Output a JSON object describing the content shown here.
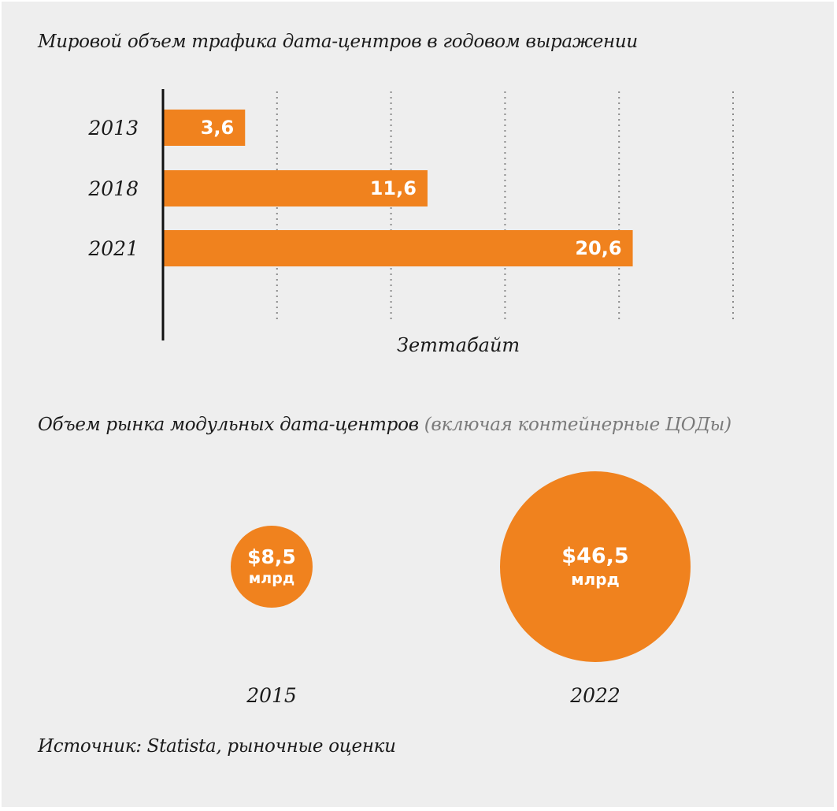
{
  "colors": {
    "background": "#eeeeee",
    "bar": "#f0821e",
    "text": "#1a1a1a",
    "subtitle": "#7a7a7a"
  },
  "chart_data": [
    {
      "type": "bar",
      "orientation": "horizontal",
      "title": "Мировой объем трафика дата-центров в годовом выражении",
      "xlabel": "Зеттабайт",
      "categories": [
        "2013",
        "2018",
        "2021"
      ],
      "values": [
        3.6,
        11.6,
        20.6
      ],
      "value_labels": [
        "3,6",
        "11,6",
        "20,6"
      ],
      "xlim": [
        0,
        25
      ],
      "grid": "vertical dotted",
      "legend": "none"
    },
    {
      "type": "bubble",
      "title": "Объем рынка модульных дата-центров",
      "subtitle": "(включая контейнерные ЦОДы)",
      "categories": [
        "2015",
        "2022"
      ],
      "values": [
        8.5,
        46.5
      ],
      "value_labels": [
        "$8,5",
        "$46,5"
      ],
      "unit": "млрд",
      "legend": "none"
    }
  ],
  "source": "Источник: Statista, рыночные оценки"
}
